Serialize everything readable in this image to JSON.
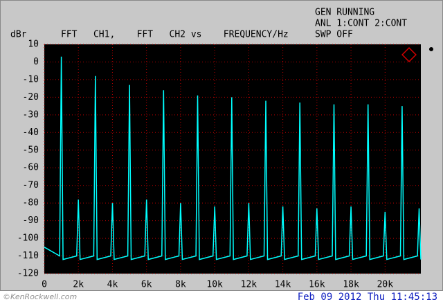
{
  "chart_data": {
    "type": "line",
    "y_label": "dBr",
    "title": "FFT   CH1,    FFT   CH2 vs    FREQUENCY/Hz",
    "status": [
      "GEN RUNNING",
      "ANL 1:CONT 2:CONT",
      "SWP OFF"
    ],
    "timestamp": "Feb 09 2012 Thu 11:45:13",
    "watermark": "©KenRockwell.com",
    "x": [
      0,
      900,
      1000,
      1100,
      1900,
      2000,
      2100,
      2900,
      3000,
      3100,
      3900,
      4000,
      4100,
      4900,
      5000,
      5100,
      5900,
      6000,
      6100,
      6900,
      7000,
      7100,
      7900,
      8000,
      8100,
      8900,
      9000,
      9100,
      9900,
      10000,
      10100,
      10900,
      11000,
      11100,
      11900,
      12000,
      12100,
      12900,
      13000,
      13100,
      13900,
      14000,
      14100,
      14900,
      15000,
      15100,
      15900,
      16000,
      16100,
      16900,
      17000,
      17100,
      17900,
      18000,
      18100,
      18900,
      19000,
      19100,
      19900,
      20000,
      20100,
      20900,
      21000,
      21100,
      21900,
      22000,
      22100
    ],
    "series": [
      {
        "color": "#00ffff",
        "values": [
          -105,
          -110,
          3,
          -112,
          -110,
          -78,
          -112,
          -110,
          -8,
          -112,
          -110,
          -80,
          -112,
          -110,
          -13,
          -112,
          -110,
          -78,
          -112,
          -110,
          -16,
          -112,
          -110,
          -80,
          -112,
          -110,
          -19,
          -112,
          -110,
          -82,
          -112,
          -110,
          -20,
          -112,
          -110,
          -80,
          -112,
          -110,
          -22,
          -112,
          -110,
          -82,
          -112,
          -110,
          -23,
          -112,
          -110,
          -83,
          -112,
          -110,
          -24,
          -112,
          -110,
          -82,
          -112,
          -110,
          -24,
          -112,
          -110,
          -85,
          -112,
          -110,
          -25,
          -112,
          -110,
          -83,
          -112
        ]
      }
    ],
    "xlim": [
      0,
      22100
    ],
    "ylim": [
      -120,
      10
    ],
    "xticks": [
      0,
      {
        "value": 2000,
        "label": "2k"
      },
      {
        "value": 4000,
        "label": "4k"
      },
      {
        "value": 6000,
        "label": "6k"
      },
      {
        "value": 8000,
        "label": "8k"
      },
      {
        "value": 10000,
        "label": "10k"
      },
      {
        "value": 12000,
        "label": "12k"
      },
      {
        "value": 14000,
        "label": "14k"
      },
      {
        "value": 16000,
        "label": "16k"
      },
      {
        "value": 18000,
        "label": "18k"
      },
      {
        "value": 20000,
        "label": "20k"
      }
    ],
    "yticks": [
      10,
      0,
      -10,
      -20,
      -30,
      -40,
      -50,
      -60,
      -70,
      -80,
      -90,
      -100,
      -110,
      -120
    ],
    "grid": true
  }
}
